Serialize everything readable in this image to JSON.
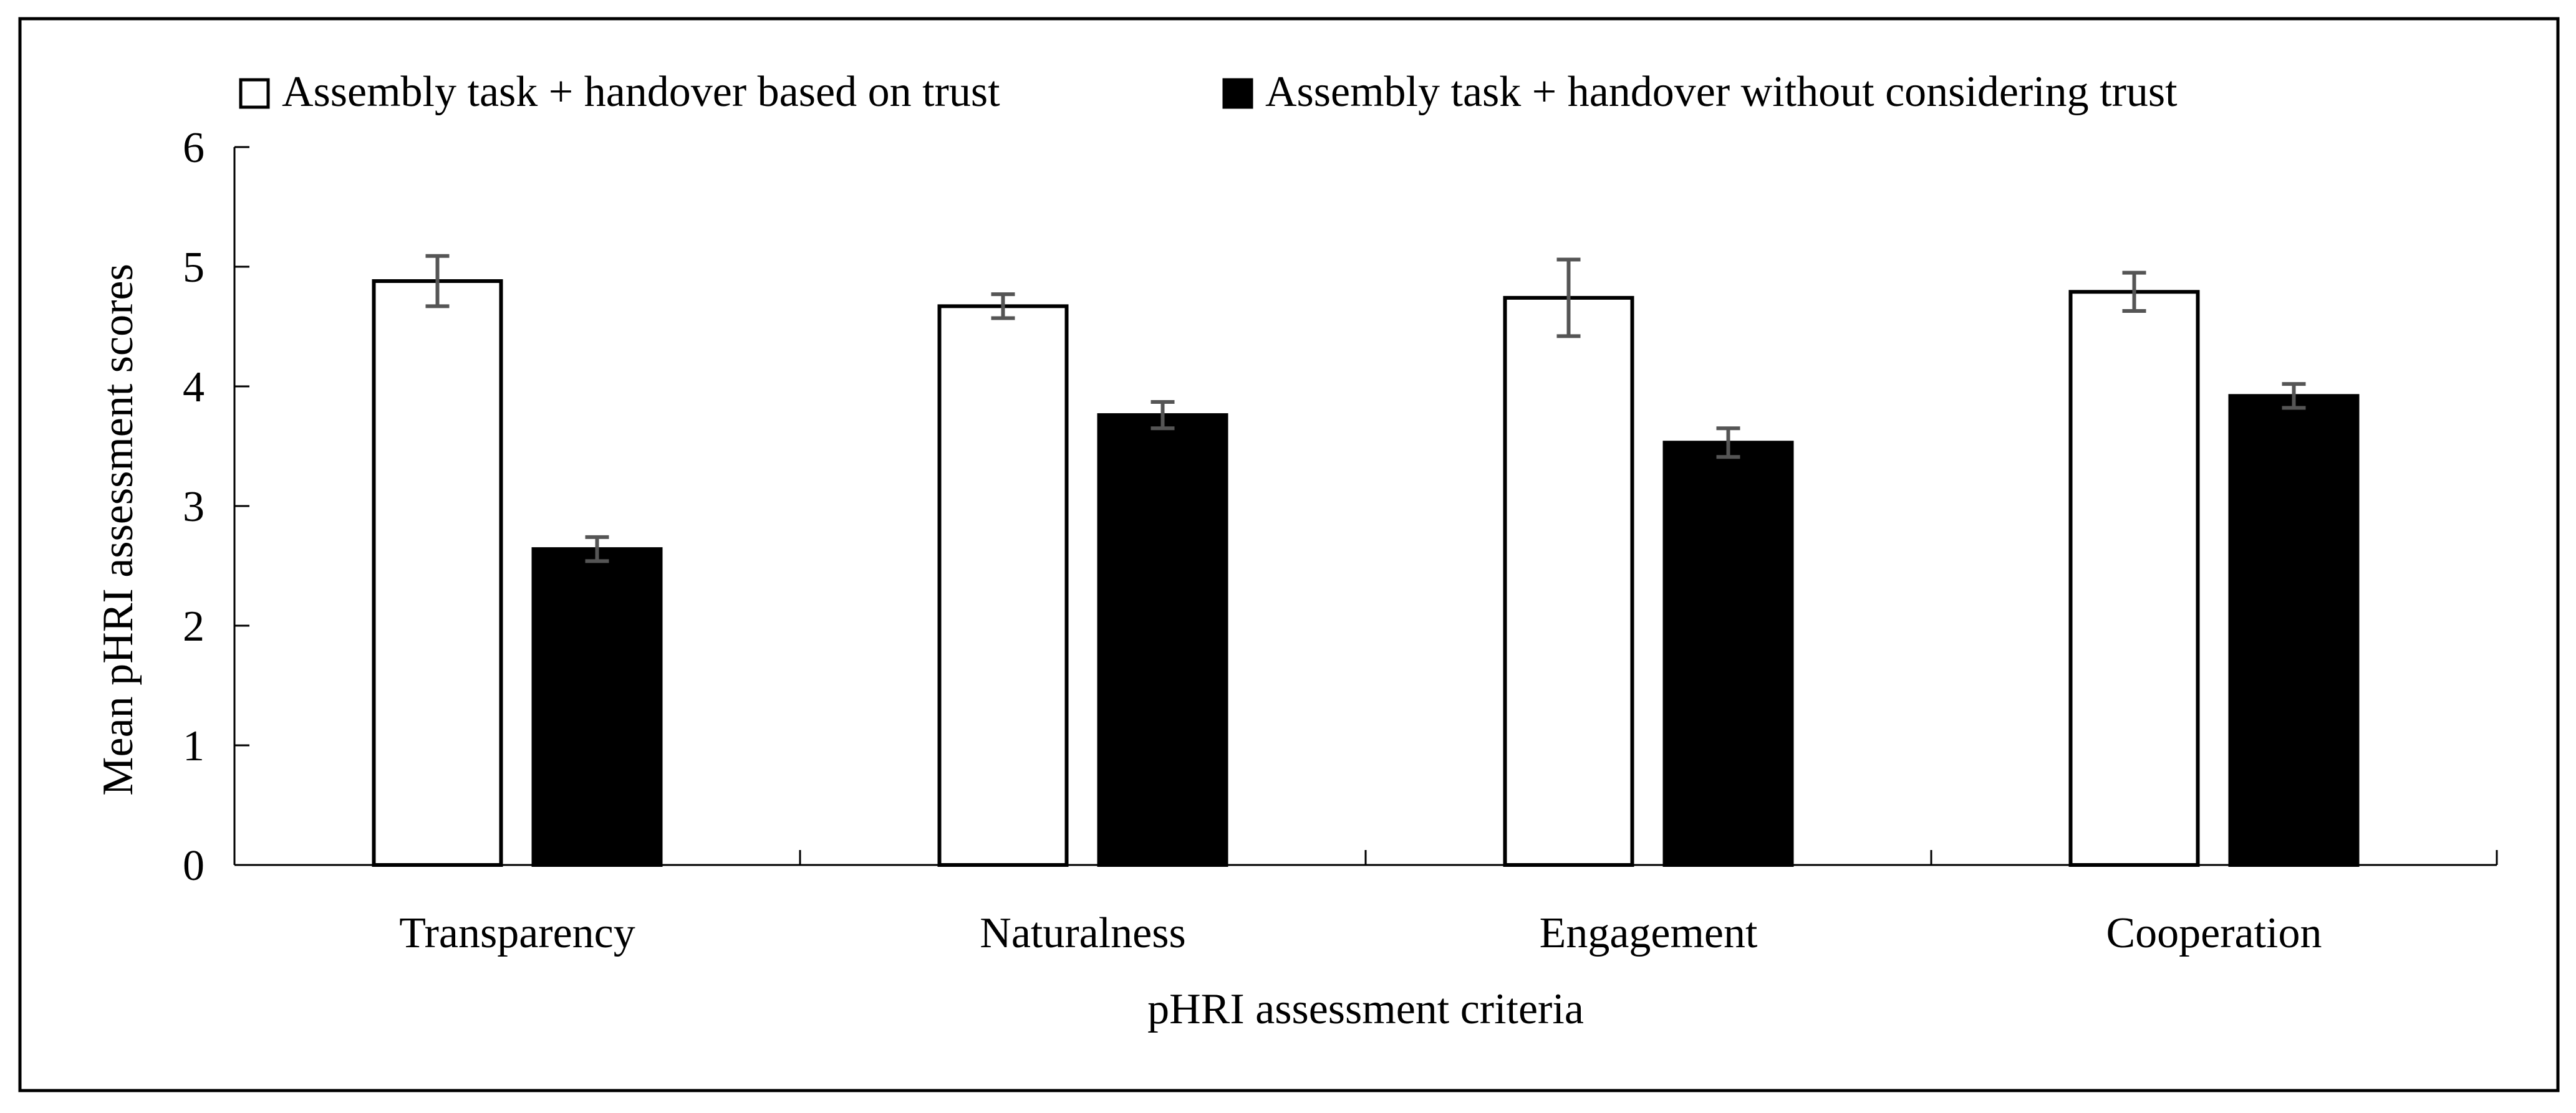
{
  "chart_data": {
    "type": "bar",
    "xlabel": "pHRI assessment criteria",
    "ylabel": "Mean pHRI assessment scores",
    "ylim": [
      0,
      6
    ],
    "yticks": [
      0,
      1,
      2,
      3,
      4,
      5,
      6
    ],
    "categories": [
      "Transparency",
      "Naturalness",
      "Engagement",
      "Cooperation"
    ],
    "legend_position": "top",
    "grid": false,
    "series": [
      {
        "name": "Assembly task + handover based on trust",
        "fill": "#ffffff",
        "values": [
          4.88,
          4.67,
          4.74,
          4.79
        ],
        "errors": [
          0.21,
          0.1,
          0.32,
          0.16
        ]
      },
      {
        "name": "Assembly task + handover without considering trust",
        "fill": "#000000",
        "values": [
          2.64,
          3.76,
          3.53,
          3.92
        ],
        "errors": [
          0.1,
          0.11,
          0.12,
          0.1
        ]
      }
    ]
  }
}
